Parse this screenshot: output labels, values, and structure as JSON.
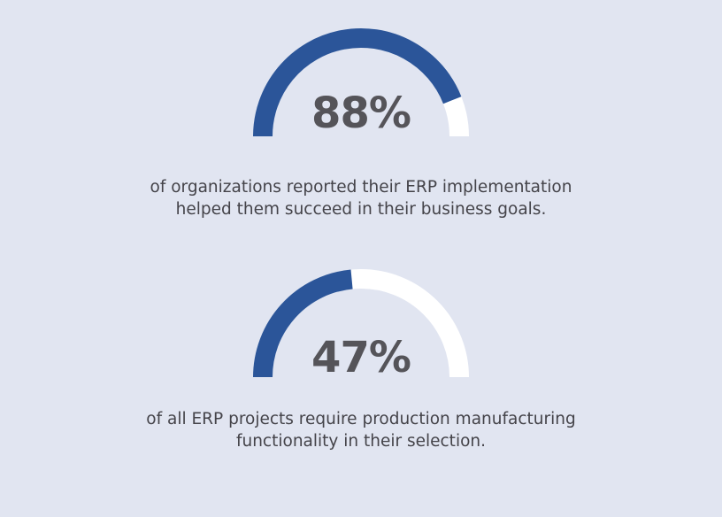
{
  "colors": {
    "background": "#e1e5f1",
    "track": "#ffffff",
    "fill": "#2b5599",
    "text": "#555459"
  },
  "chart_data": [
    {
      "type": "gauge",
      "value": 88,
      "max": 100,
      "label": "88%",
      "caption_lines": [
        "of organizations reported their ERP implementation",
        "helped them succeed in their business goals."
      ]
    },
    {
      "type": "gauge",
      "value": 47,
      "max": 100,
      "label": "47%",
      "caption_lines": [
        "of all ERP projects require production manufacturing",
        "functionality in their selection."
      ]
    }
  ]
}
